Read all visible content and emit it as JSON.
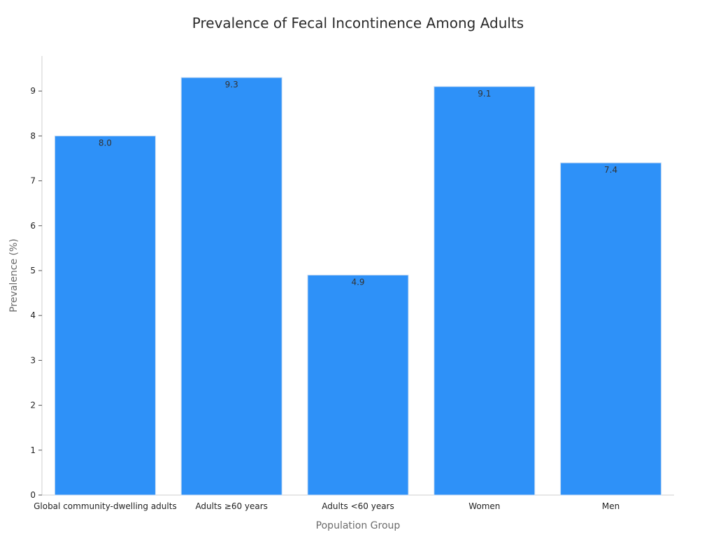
{
  "chart_data": {
    "type": "bar",
    "title": "Prevalence of Fecal Incontinence Among Adults",
    "xlabel": "Population Group",
    "ylabel": "Prevalence (%)",
    "categories": [
      "Global community-dwelling adults",
      "Adults ≥60 years",
      "Adults <60 years",
      "Women",
      "Men"
    ],
    "values": [
      8.0,
      9.3,
      4.9,
      9.1,
      7.4
    ],
    "data_labels": [
      "8.0",
      "9.3",
      "4.9",
      "9.1",
      "7.4"
    ],
    "ylim": [
      0,
      9.8
    ],
    "yticks": [
      0,
      1,
      2,
      3,
      4,
      5,
      6,
      7,
      8,
      9
    ],
    "grid": false,
    "legend": "none",
    "bar_color": "#2e91f8",
    "bar_edge_color": "#c9dcf2"
  }
}
